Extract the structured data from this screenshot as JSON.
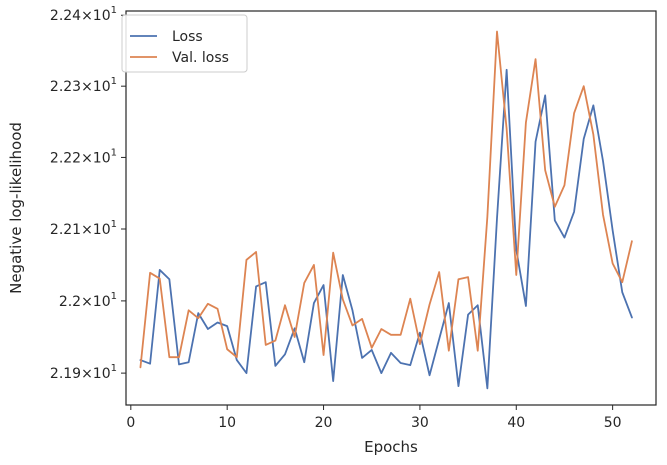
{
  "chart_data": {
    "type": "line",
    "xlabel": "Epochs",
    "ylabel": "Negative log-likelihood",
    "xlim": [
      -0.5,
      54.5
    ],
    "ylim": [
      21.856,
      22.406
    ],
    "yscale": "log",
    "grid": false,
    "legend": "top-left",
    "x_ticks": [
      0,
      10,
      20,
      30,
      40,
      50
    ],
    "x_tick_labels": [
      "0",
      "10",
      "20",
      "30",
      "40",
      "50"
    ],
    "y_ticks": [
      21.9,
      22.0,
      22.1,
      22.2,
      22.3,
      22.4
    ],
    "y_tick_labels": [
      {
        "base": "2.19",
        "exp": "1"
      },
      {
        "base": "2.2",
        "exp": "1"
      },
      {
        "base": "2.21",
        "exp": "1"
      },
      {
        "base": "2.22",
        "exp": "1"
      },
      {
        "base": "2.23",
        "exp": "1"
      },
      {
        "base": "2.24",
        "exp": "1"
      }
    ],
    "x": [
      1,
      2,
      3,
      4,
      5,
      6,
      7,
      8,
      9,
      10,
      11,
      12,
      13,
      14,
      15,
      16,
      17,
      18,
      19,
      20,
      21,
      22,
      23,
      24,
      25,
      26,
      27,
      28,
      29,
      30,
      31,
      32,
      33,
      34,
      35,
      36,
      37,
      38,
      39,
      40,
      41,
      42,
      43,
      44,
      45,
      46,
      47,
      48,
      49,
      50,
      51,
      52
    ],
    "series": [
      {
        "name": "Loss",
        "color": "#4c72b0",
        "values": [
          21.918,
          21.913,
          22.043,
          22.03,
          21.912,
          21.915,
          21.983,
          21.961,
          21.97,
          21.965,
          21.918,
          21.9,
          22.02,
          22.026,
          21.91,
          21.926,
          21.962,
          21.915,
          21.997,
          22.022,
          21.889,
          22.036,
          21.987,
          21.921,
          21.932,
          21.9,
          21.928,
          21.914,
          21.911,
          21.956,
          21.897,
          21.947,
          21.997,
          21.882,
          21.981,
          21.994,
          21.879,
          22.115,
          22.323,
          22.071,
          21.993,
          22.222,
          22.287,
          22.112,
          22.088,
          22.124,
          22.226,
          22.273,
          22.195,
          22.098,
          22.012,
          21.977
        ]
      },
      {
        "name": "Val. loss",
        "color": "#dd8452",
        "values": [
          21.908,
          22.039,
          22.031,
          21.922,
          21.922,
          21.987,
          21.976,
          21.996,
          21.989,
          21.933,
          21.922,
          22.057,
          22.068,
          21.939,
          21.945,
          21.994,
          21.95,
          22.025,
          22.05,
          21.925,
          22.067,
          22.002,
          21.966,
          21.975,
          21.935,
          21.961,
          21.953,
          21.953,
          22.003,
          21.94,
          21.995,
          22.04,
          21.931,
          22.03,
          22.033,
          21.931,
          22.117,
          22.377,
          22.24,
          22.036,
          22.249,
          22.338,
          22.182,
          22.131,
          22.161,
          22.262,
          22.3,
          22.232,
          22.12,
          22.052,
          22.026,
          22.083
        ]
      }
    ]
  }
}
